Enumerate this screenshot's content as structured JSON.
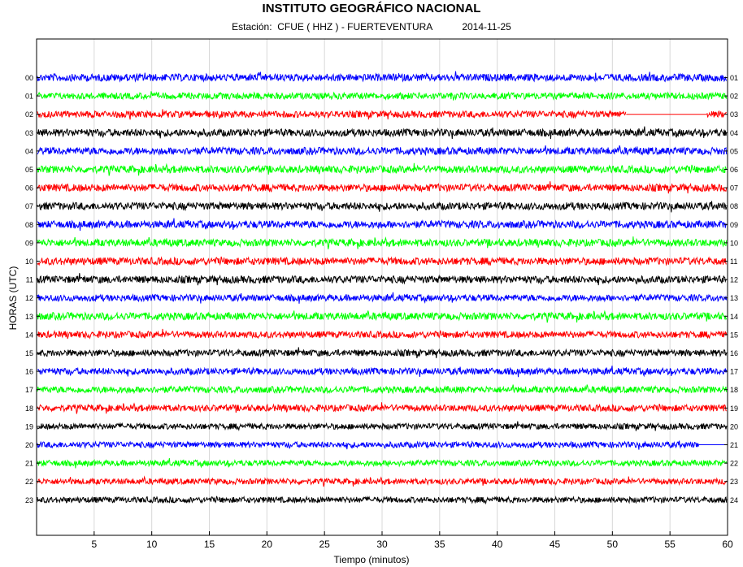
{
  "chart_data": {
    "type": "line",
    "title": "INSTITUTO GEOGRÁFICO NACIONAL",
    "subtitle_station": "Estación:  CFUE ( HHZ ) - FUERTEVENTURA",
    "subtitle_date": "2014-11-25",
    "xlabel": "Tiempo (minutos)",
    "ylabel": "HORAS (UTC)",
    "xlim": [
      0,
      60
    ],
    "xticks": [
      5,
      10,
      15,
      20,
      25,
      30,
      35,
      40,
      45,
      50,
      55,
      60
    ],
    "grid": true,
    "left_tick_labels": [
      "00",
      "01",
      "02",
      "03",
      "04",
      "05",
      "06",
      "07",
      "08",
      "09",
      "10",
      "11",
      "12",
      "13",
      "14",
      "15",
      "16",
      "17",
      "18",
      "19",
      "20",
      "21",
      "22",
      "23"
    ],
    "right_tick_labels": [
      "01",
      "02",
      "03",
      "04",
      "05",
      "06",
      "07",
      "08",
      "09",
      "10",
      "11",
      "12",
      "13",
      "14",
      "15",
      "16",
      "17",
      "18",
      "19",
      "20",
      "21",
      "22",
      "23",
      "24"
    ],
    "color_cycle": [
      "#0000ff",
      "#00ff00",
      "#ff0000",
      "#000000"
    ],
    "traces": [
      {
        "hour": "00",
        "color": "#0000ff",
        "amplitude": 0.5
      },
      {
        "hour": "01",
        "color": "#00ff00",
        "amplitude": 0.45
      },
      {
        "hour": "02",
        "color": "#ff0000",
        "amplitude": 0.45,
        "data_gap_minutes": [
          51.2,
          58.2
        ]
      },
      {
        "hour": "03",
        "color": "#000000",
        "amplitude": 0.5
      },
      {
        "hour": "04",
        "color": "#0000ff",
        "amplitude": 0.5
      },
      {
        "hour": "05",
        "color": "#00ff00",
        "amplitude": 0.5
      },
      {
        "hour": "06",
        "color": "#ff0000",
        "amplitude": 0.5
      },
      {
        "hour": "07",
        "color": "#000000",
        "amplitude": 0.5
      },
      {
        "hour": "08",
        "color": "#0000ff",
        "amplitude": 0.5
      },
      {
        "hour": "09",
        "color": "#00ff00",
        "amplitude": 0.5
      },
      {
        "hour": "10",
        "color": "#ff0000",
        "amplitude": 0.5
      },
      {
        "hour": "11",
        "color": "#000000",
        "amplitude": 0.5
      },
      {
        "hour": "12",
        "color": "#0000ff",
        "amplitude": 0.45
      },
      {
        "hour": "13",
        "color": "#00ff00",
        "amplitude": 0.5
      },
      {
        "hour": "14",
        "color": "#ff0000",
        "amplitude": 0.45
      },
      {
        "hour": "15",
        "color": "#000000",
        "amplitude": 0.45
      },
      {
        "hour": "16",
        "color": "#0000ff",
        "amplitude": 0.45
      },
      {
        "hour": "17",
        "color": "#00ff00",
        "amplitude": 0.45
      },
      {
        "hour": "18",
        "color": "#ff0000",
        "amplitude": 0.45
      },
      {
        "hour": "19",
        "color": "#000000",
        "amplitude": 0.4
      },
      {
        "hour": "20",
        "color": "#0000ff",
        "amplitude": 0.4,
        "data_gap_minutes": [
          57.5,
          60
        ]
      },
      {
        "hour": "21",
        "color": "#00ff00",
        "amplitude": 0.4
      },
      {
        "hour": "22",
        "color": "#ff0000",
        "amplitude": 0.4
      },
      {
        "hour": "23",
        "color": "#000000",
        "amplitude": 0.4
      }
    ]
  }
}
